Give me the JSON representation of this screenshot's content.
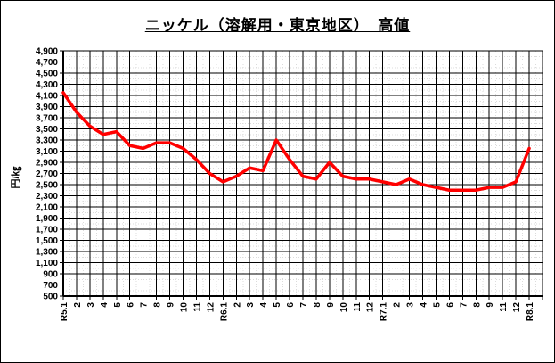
{
  "window": {
    "background": "#ffffff",
    "border_color": "#000000"
  },
  "title": "ニッケル（溶解用・東京地区）　高値",
  "y_axis_unit": "円/㎏",
  "chart_data": {
    "type": "line",
    "title": "ニッケル（溶解用・東京地区）　高値",
    "ylabel": "円/㎏",
    "xlabel": "",
    "legend": "none",
    "grid": "both-major-and-dotted-minor",
    "series_name": "高値",
    "series_color": "#ff0000",
    "grid_color": "#000000",
    "minor_grid_color": "#dcdcdc",
    "ylim": [
      500,
      4900
    ],
    "y_tick_step": 200,
    "y_tick_labels": [
      "4,900",
      "4,700",
      "4,500",
      "4,300",
      "4,100",
      "3,900",
      "3,700",
      "3,500",
      "3,300",
      "3,100",
      "2,900",
      "2,700",
      "2,500",
      "2,300",
      "2,100",
      "1,900",
      "1,700",
      "1,500",
      "1,300",
      "1,100",
      "900",
      "700",
      "500"
    ],
    "x_extra_columns": 1,
    "categories": [
      "R5.1",
      "2",
      "3",
      "4",
      "5",
      "6",
      "7",
      "8",
      "9",
      "10",
      "11",
      "12",
      "R6.1",
      "2",
      "3",
      "4",
      "5",
      "6",
      "7",
      "8",
      "9",
      "10",
      "11",
      "12",
      "R7.1",
      "2",
      "3",
      "4",
      "5",
      "6",
      "7",
      "8",
      "9",
      "11",
      "12",
      "R8.1"
    ],
    "values": [
      4150,
      3800,
      3550,
      3400,
      3450,
      3200,
      3150,
      3250,
      3250,
      3150,
      2950,
      2700,
      2550,
      2650,
      2800,
      2750,
      3300,
      2950,
      2650,
      2600,
      2900,
      2650,
      2600,
      2600,
      2550,
      2500,
      2600,
      2500,
      2450,
      2400,
      2400,
      2400,
      2450,
      2450,
      2550,
      3150
    ]
  }
}
